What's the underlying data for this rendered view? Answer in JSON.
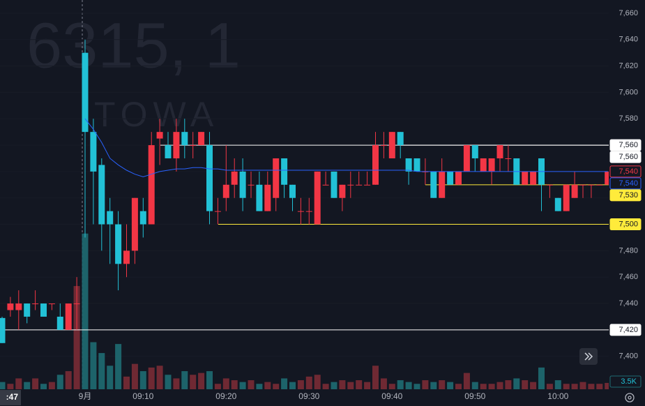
{
  "chart_data": {
    "type": "candlestick",
    "watermark": "6315, 1",
    "watermark_sub": "TOWA",
    "categories": [
      null,
      null,
      null,
      null,
      null,
      null,
      null,
      null,
      null,
      null,
      "9月",
      null,
      null,
      null,
      null,
      null,
      null,
      "09:10",
      null,
      null,
      null,
      null,
      null,
      null,
      null,
      null,
      null,
      "09:20",
      null,
      null,
      null,
      null,
      null,
      null,
      null,
      null,
      null,
      "09:30",
      null,
      null,
      null,
      null,
      null,
      null,
      null,
      null,
      null,
      "09:40",
      null,
      null,
      null,
      null,
      null,
      null,
      null,
      null,
      null,
      "09:50",
      null,
      null,
      null,
      null,
      null,
      null,
      null,
      null,
      null,
      "10:00",
      null,
      null,
      null,
      null,
      null,
      null
    ],
    "open": [
      7429,
      7435,
      7435,
      7440,
      7440,
      7440,
      7440,
      7430,
      7420,
      7440,
      7630,
      7570,
      7545,
      7510,
      7500,
      7470,
      7480,
      7510,
      7500,
      7565,
      7560,
      7550,
      7570,
      7560,
      7560,
      7560,
      7510,
      7520,
      7530,
      7540,
      7530,
      7530,
      7510,
      7520,
      7550,
      7530,
      7510,
      7510,
      7500,
      7530,
      7540,
      7520,
      7530,
      7530,
      7530,
      7530,
      7560,
      7550,
      7570,
      7550,
      7550,
      7540,
      7540,
      7520,
      7540,
      7530,
      7540,
      7560,
      7540,
      7540,
      7550,
      7550,
      7550,
      7530,
      7530,
      7550,
      7530,
      7520,
      7510,
      7520,
      7530,
      7530,
      7530,
      7530
    ],
    "high": [
      7430,
      7445,
      7450,
      7440,
      7450,
      7440,
      7440,
      7440,
      7440,
      7460,
      7640,
      7580,
      7550,
      7520,
      7510,
      7500,
      7520,
      7520,
      7570,
      7580,
      7570,
      7580,
      7580,
      7570,
      7570,
      7570,
      7520,
      7560,
      7550,
      7550,
      7540,
      7540,
      7540,
      7550,
      7550,
      7530,
      7520,
      7520,
      7540,
      7540,
      7540,
      7530,
      7540,
      7540,
      7540,
      7570,
      7570,
      7570,
      7570,
      7550,
      7550,
      7550,
      7540,
      7550,
      7540,
      7540,
      7560,
      7560,
      7550,
      7550,
      7560,
      7560,
      7550,
      7540,
      7540,
      7550,
      7530,
      7520,
      7530,
      7540,
      7530,
      7530,
      7530,
      7540
    ],
    "low": [
      7410,
      7430,
      7420,
      7425,
      7435,
      7430,
      7435,
      7420,
      7420,
      7420,
      7490,
      7500,
      7480,
      7470,
      7450,
      7460,
      7470,
      7490,
      7500,
      7545,
      7550,
      7540,
      7550,
      7550,
      7560,
      7500,
      7500,
      7510,
      7520,
      7510,
      7520,
      7510,
      7510,
      7510,
      7520,
      7510,
      7500,
      7500,
      7500,
      7530,
      7520,
      7510,
      7520,
      7530,
      7530,
      7530,
      7550,
      7550,
      7550,
      7530,
      7540,
      7530,
      7520,
      7520,
      7530,
      7530,
      7540,
      7540,
      7540,
      7530,
      7540,
      7540,
      7530,
      7530,
      7530,
      7510,
      7520,
      7510,
      7510,
      7520,
      7520,
      7520,
      7530,
      7530
    ],
    "close": [
      7410,
      7440,
      7440,
      7430,
      7440,
      7430,
      7440,
      7420,
      7440,
      7440,
      7570,
      7540,
      7500,
      7500,
      7470,
      7480,
      7520,
      7500,
      7560,
      7570,
      7550,
      7570,
      7560,
      7560,
      7570,
      7510,
      7510,
      7530,
      7540,
      7520,
      7530,
      7510,
      7530,
      7550,
      7530,
      7520,
      7510,
      7510,
      7540,
      7530,
      7520,
      7530,
      7530,
      7530,
      7530,
      7560,
      7560,
      7570,
      7560,
      7540,
      7540,
      7540,
      7520,
      7540,
      7530,
      7540,
      7560,
      7550,
      7550,
      7550,
      7560,
      7550,
      7530,
      7540,
      7540,
      7530,
      7530,
      7510,
      7530,
      7530,
      7530,
      7530,
      7530,
      7540
    ],
    "up_color": "#f23645",
    "down_color": "#22c1d6",
    "volume": {
      "values": [
        4000,
        3000,
        6000,
        4000,
        6000,
        3000,
        4000,
        8000,
        10000,
        57000,
        86000,
        26000,
        20000,
        13000,
        25000,
        7000,
        14000,
        10000,
        12000,
        13000,
        8000,
        6000,
        10000,
        8000,
        9000,
        10000,
        3000,
        6000,
        5000,
        4000,
        5000,
        3000,
        4000,
        3000,
        6000,
        4000,
        5000,
        7000,
        8000,
        3000,
        4000,
        5000,
        4000,
        5000,
        4000,
        13000,
        6000,
        3000,
        5000,
        4000,
        3000,
        5000,
        4000,
        5000,
        4000,
        3000,
        9000,
        4000,
        3000,
        3000,
        4000,
        5000,
        6000,
        5000,
        4000,
        12000,
        3000,
        5000,
        3000,
        3000,
        4000,
        3000,
        3000,
        3500
      ],
      "last_value_label": "3.5K",
      "vlim": [
        0,
        215000
      ]
    },
    "ma": {
      "color": "#2962ff",
      "values": [
        null,
        null,
        null,
        null,
        null,
        null,
        null,
        null,
        null,
        null,
        7580,
        7572,
        7562,
        7550,
        7545,
        7541,
        7538,
        7536,
        7538,
        7540,
        7541,
        7542,
        7542,
        7543,
        7543,
        7542,
        7542,
        7541,
        7541,
        7541,
        7541,
        7541,
        7541,
        7541,
        7541,
        7541,
        7541,
        7541,
        7541,
        7541,
        7541,
        7541,
        7541,
        7541,
        7541,
        7541,
        7541,
        7541,
        7541,
        7541,
        7540,
        7540,
        7540,
        7540,
        7540,
        7540,
        7540,
        7540,
        7540,
        7540,
        7540,
        7540,
        7540,
        7540,
        7540,
        7540,
        7540,
        7540,
        7540,
        7540,
        7540,
        7540,
        7540,
        7540
      ]
    },
    "ylim": [
      7375,
      7670
    ],
    "yticks": [
      {
        "value": 7400,
        "label": "7,400"
      },
      {
        "value": 7420,
        "label": "7,420"
      },
      {
        "value": 7440,
        "label": "7,440"
      },
      {
        "value": 7460,
        "label": "7,460"
      },
      {
        "value": 7480,
        "label": "7,480"
      },
      {
        "value": 7500,
        "label": "7,500"
      },
      {
        "value": 7520,
        "label": "7,520"
      },
      {
        "value": 7540,
        "label": "7,540"
      },
      {
        "value": 7560,
        "label": "7,560"
      },
      {
        "value": 7580,
        "label": "7,580"
      },
      {
        "value": 7600,
        "label": "7,600"
      },
      {
        "value": 7620,
        "label": "7,620"
      },
      {
        "value": 7640,
        "label": "7,640"
      },
      {
        "value": 7660,
        "label": "7,660"
      }
    ],
    "price_lines": [
      {
        "value": 7560,
        "label": "7,560",
        "color": "#ffffff"
      },
      {
        "value": 7560,
        "label": "7,560",
        "color": "#ffffff"
      },
      {
        "value": 7540,
        "label": "7,540",
        "color": "#f23645"
      },
      {
        "value": 7540,
        "label": "7,540",
        "color": "#2962ff"
      },
      {
        "value": 7530,
        "label": "7,530",
        "color": "#ffeb3b"
      },
      {
        "value": 7500,
        "label": "7,500",
        "color": "#ffeb3b"
      },
      {
        "value": 7420,
        "label": "7,420",
        "color": "#ffffff"
      }
    ],
    "cursor_time": ":47"
  }
}
